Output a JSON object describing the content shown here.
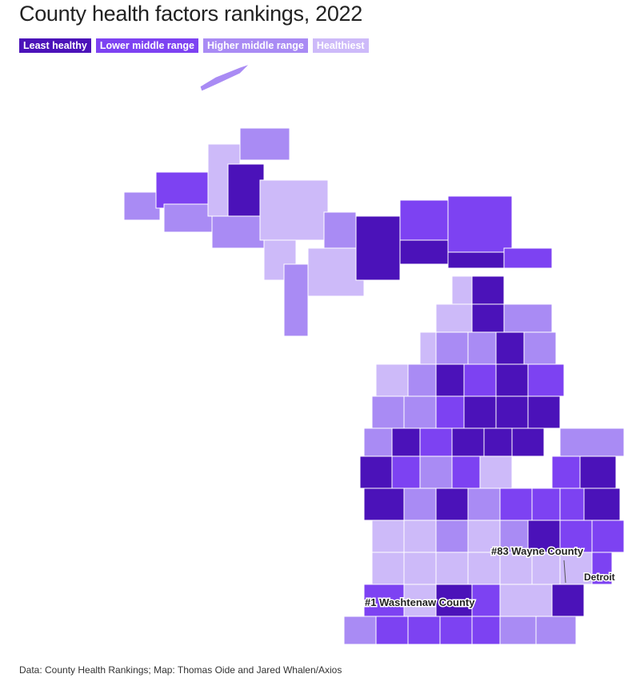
{
  "title": "County health factors rankings, 2022",
  "legend": [
    "Least healthy",
    "Lower middle range",
    "Higher middle range",
    "Healthiest"
  ],
  "annotations": {
    "wayne": "#83  Wayne County",
    "detroit": "Detroit",
    "washtenaw": "#1  Washtenaw County"
  },
  "source": "Data: County Health Rankings; Map: Thomas Oide and Jared Whalen/Axios"
}
